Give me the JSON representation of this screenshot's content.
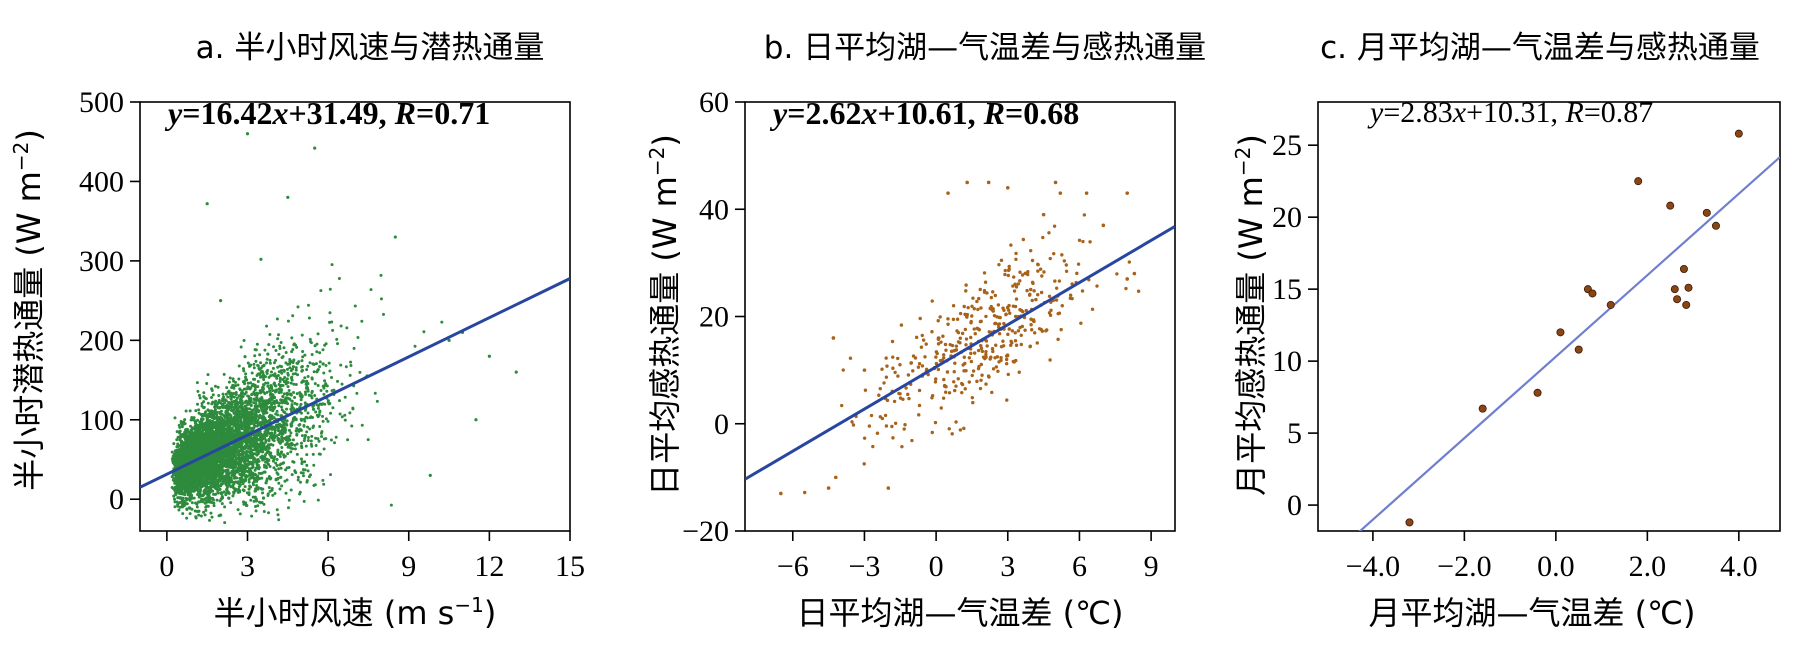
{
  "chart_data": [
    {
      "type": "scatter",
      "title": "a. 半小时风速与潜热通量",
      "equation": {
        "prefix": "y",
        "body": "=16.42",
        "var": "x",
        "tail": "+31.49, ",
        "r": "R",
        "rval": "=0.71"
      },
      "xlabel": "半小时风速 (m s",
      "xlabel_sup": "−1",
      "xlabel_end": ")",
      "ylabel": "半小时潜热通量 (W m",
      "ylabel_sup": "−2",
      "ylabel_end": ")",
      "xlim": [
        -1,
        15
      ],
      "ylim": [
        -40,
        500
      ],
      "xticks": [
        0,
        3,
        6,
        9,
        12,
        15
      ],
      "yticks": [
        0,
        100,
        200,
        300,
        400,
        500
      ],
      "point_color": "#2e8b3d",
      "line_color": "#2746a0",
      "fit": {
        "slope": 16.42,
        "intercept": 31.49
      },
      "notable_points": [
        {
          "x": 1.5,
          "y": 372
        },
        {
          "x": 3.0,
          "y": 460
        },
        {
          "x": 5.5,
          "y": 442
        },
        {
          "x": 4.5,
          "y": 380
        },
        {
          "x": 3.5,
          "y": 302
        },
        {
          "x": 2.0,
          "y": 250
        },
        {
          "x": 8.5,
          "y": 330
        },
        {
          "x": 10.5,
          "y": 200
        },
        {
          "x": 12.0,
          "y": 180
        },
        {
          "x": 11.0,
          "y": 210
        },
        {
          "x": 13.0,
          "y": 160
        },
        {
          "x": 2.0,
          "y": -20
        },
        {
          "x": 0.5,
          "y": -10
        },
        {
          "x": 9.8,
          "y": 30
        },
        {
          "x": 11.5,
          "y": 100
        }
      ]
    },
    {
      "type": "scatter",
      "title": "b. 日平均湖—气温差与感热通量",
      "equation": {
        "prefix": "y",
        "body": "=2.62",
        "var": "x",
        "tail": "+10.61, ",
        "r": "R",
        "rval": "=0.68"
      },
      "xlabel": "日平均湖—气温差 (℃)",
      "ylabel": "日平均感热通量 (W m",
      "ylabel_sup": "−2",
      "ylabel_end": ")",
      "xlim": [
        -8,
        10
      ],
      "ylim": [
        -20,
        60
      ],
      "xticks": [
        -6,
        -3,
        0,
        3,
        6,
        9
      ],
      "xtick_labels": [
        "−6",
        "−3",
        "0",
        "3",
        "6",
        "9"
      ],
      "yticks": [
        -20,
        0,
        20,
        40,
        60
      ],
      "ytick_labels": [
        "−20",
        "0",
        "20",
        "40",
        "60"
      ],
      "point_color": "#a8621a",
      "line_color": "#2746a0",
      "fit": {
        "slope": 2.62,
        "intercept": 10.61
      },
      "notable_points": [
        {
          "x": 1.3,
          "y": 45
        },
        {
          "x": 2.2,
          "y": 45
        },
        {
          "x": 3.0,
          "y": 44
        },
        {
          "x": 5.0,
          "y": 45
        },
        {
          "x": 5.2,
          "y": 43
        },
        {
          "x": 6.3,
          "y": 43
        },
        {
          "x": 8.0,
          "y": 43
        },
        {
          "x": 0.5,
          "y": 43
        },
        {
          "x": 4.5,
          "y": 39
        },
        {
          "x": 7.0,
          "y": 37
        },
        {
          "x": -6.5,
          "y": -13
        },
        {
          "x": -4.5,
          "y": -12
        },
        {
          "x": -4.2,
          "y": -10
        },
        {
          "x": -4.3,
          "y": 16
        },
        {
          "x": -3.0,
          "y": 10
        },
        {
          "x": 8.0,
          "y": 27
        },
        {
          "x": 8.3,
          "y": 28
        },
        {
          "x": -2.0,
          "y": -12
        }
      ]
    },
    {
      "type": "scatter",
      "title": "c. 月平均湖—气温差与感热通量",
      "equation": {
        "prefix": "y",
        "body": "=2.83",
        "var": "x",
        "tail": "+10.31, ",
        "r": "R",
        "rval": "=0.87"
      },
      "xlabel": "月平均湖—气温差 (℃)",
      "ylabel": "月平均感热通量 (W m",
      "ylabel_sup": "−2",
      "ylabel_end": ")",
      "xlim": [
        -5.2,
        4.9
      ],
      "ylim": [
        -1.8,
        28
      ],
      "xticks": [
        -4,
        -2,
        0,
        2,
        4
      ],
      "xtick_labels": [
        "−4.0",
        "−2.0",
        "0.0",
        "2.0",
        "4.0"
      ],
      "yticks": [
        0,
        5,
        10,
        15,
        20,
        25
      ],
      "ytick_labels": [
        "0",
        "5",
        "10",
        "15",
        "20",
        "25"
      ],
      "point_color": "#8b4513",
      "line_color": "#6f7fd0",
      "fit": {
        "slope": 2.83,
        "intercept": 10.31
      },
      "points": [
        {
          "x": -3.2,
          "y": -1.2
        },
        {
          "x": -1.6,
          "y": 6.7
        },
        {
          "x": -0.4,
          "y": 7.8
        },
        {
          "x": 0.1,
          "y": 12.0
        },
        {
          "x": 0.5,
          "y": 10.8
        },
        {
          "x": 0.7,
          "y": 15.0
        },
        {
          "x": 0.8,
          "y": 14.7
        },
        {
          "x": 1.2,
          "y": 13.9
        },
        {
          "x": 1.8,
          "y": 22.5
        },
        {
          "x": 2.5,
          "y": 20.8
        },
        {
          "x": 2.6,
          "y": 15.0
        },
        {
          "x": 2.65,
          "y": 14.3
        },
        {
          "x": 2.8,
          "y": 16.4
        },
        {
          "x": 2.85,
          "y": 13.9
        },
        {
          "x": 2.9,
          "y": 15.1
        },
        {
          "x": 3.3,
          "y": 20.3
        },
        {
          "x": 3.5,
          "y": 19.4
        },
        {
          "x": 4.0,
          "y": 25.8
        }
      ]
    }
  ]
}
